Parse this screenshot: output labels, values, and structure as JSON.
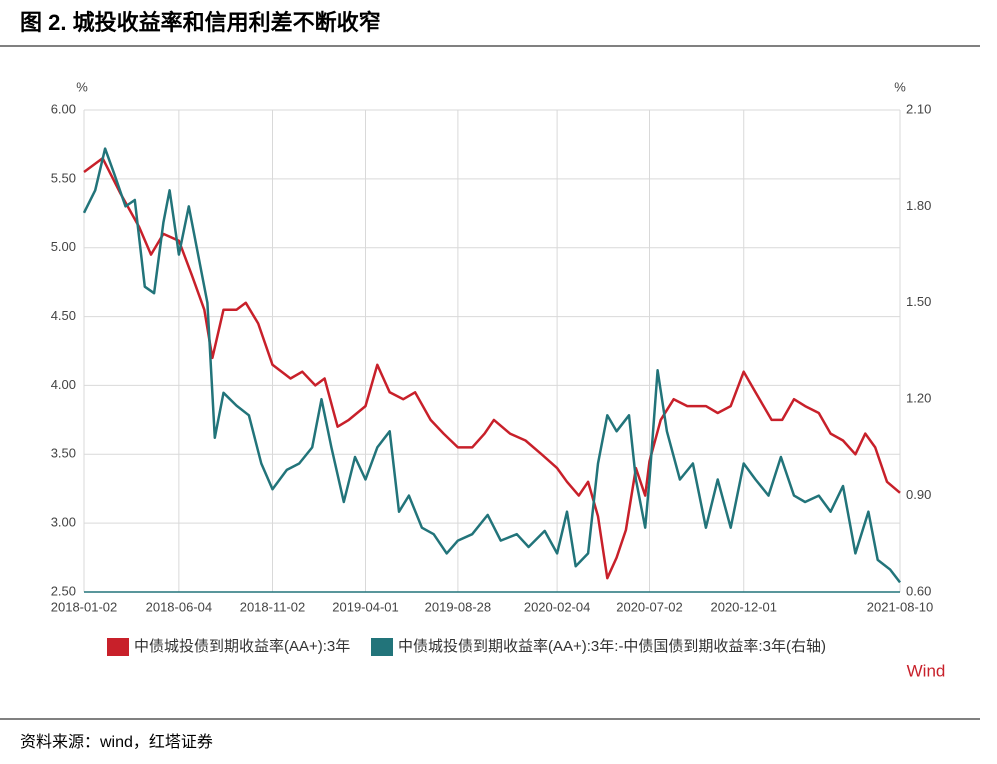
{
  "chart_data": {
    "type": "line",
    "title": "图 2. 城投收益率和信用利差不断收窄",
    "y_label": "%",
    "y2_label": "%",
    "annotation": "Wind",
    "source": "资料来源：wind，红塔证券",
    "grid": true,
    "xlim": [
      "2018-01-02",
      "2021-08-10"
    ],
    "xticks": [
      "2018-01-02",
      "2018-06-04",
      "2018-11-02",
      "2019-04-01",
      "2019-08-28",
      "2020-02-04",
      "2020-07-02",
      "2020-12-01",
      "2021-08-10"
    ],
    "ylim": [
      2.5,
      6.0
    ],
    "yticks": [
      {
        "value": 2.5,
        "label": "2.50"
      },
      {
        "value": 3.0,
        "label": "3.00"
      },
      {
        "value": 3.5,
        "label": "3.50"
      },
      {
        "value": 4.0,
        "label": "4.00"
      },
      {
        "value": 4.5,
        "label": "4.50"
      },
      {
        "value": 5.0,
        "label": "5.00"
      },
      {
        "value": 5.5,
        "label": "5.50"
      },
      {
        "value": 6.0,
        "label": "6.00"
      }
    ],
    "y2lim": [
      0.6,
      2.1
    ],
    "y2ticks": [
      {
        "value": 0.6,
        "label": "0.60"
      },
      {
        "value": 0.9,
        "label": "0.90"
      },
      {
        "value": 1.2,
        "label": "1.20"
      },
      {
        "value": 1.5,
        "label": "1.50"
      },
      {
        "value": 1.8,
        "label": "1.80"
      },
      {
        "value": 2.1,
        "label": "2.10"
      }
    ],
    "series": [
      {
        "name": "中债城投债到期收益率(AA+):3年",
        "color": "#c8202a",
        "x": [
          "2018-01-02",
          "2018-02-01",
          "2018-03-01",
          "2018-04-01",
          "2018-04-20",
          "2018-05-10",
          "2018-06-04",
          "2018-06-25",
          "2018-07-15",
          "2018-07-28",
          "2018-08-15",
          "2018-09-05",
          "2018-09-20",
          "2018-10-10",
          "2018-11-02",
          "2018-12-01",
          "2018-12-20",
          "2019-01-10",
          "2019-01-25",
          "2019-02-15",
          "2019-03-05",
          "2019-04-01",
          "2019-04-20",
          "2019-05-10",
          "2019-06-01",
          "2019-06-20",
          "2019-07-15",
          "2019-08-05",
          "2019-08-28",
          "2019-09-20",
          "2019-10-10",
          "2019-10-25",
          "2019-11-20",
          "2019-12-15",
          "2020-01-10",
          "2020-02-04",
          "2020-02-20",
          "2020-03-10",
          "2020-03-25",
          "2020-04-10",
          "2020-04-25",
          "2020-05-10",
          "2020-05-25",
          "2020-06-10",
          "2020-06-25",
          "2020-07-02",
          "2020-07-20",
          "2020-08-10",
          "2020-09-01",
          "2020-10-01",
          "2020-10-20",
          "2020-11-10",
          "2020-12-01",
          "2020-12-20",
          "2021-01-15",
          "2021-02-01",
          "2021-02-20",
          "2021-03-10",
          "2021-04-01",
          "2021-04-20",
          "2021-05-10",
          "2021-05-30",
          "2021-06-15",
          "2021-07-01",
          "2021-07-20",
          "2021-08-10"
        ],
        "values": [
          5.55,
          5.65,
          5.4,
          5.15,
          4.95,
          5.1,
          5.05,
          4.8,
          4.55,
          4.2,
          4.55,
          4.55,
          4.6,
          4.45,
          4.15,
          4.05,
          4.1,
          4.0,
          4.05,
          3.7,
          3.75,
          3.85,
          4.15,
          3.95,
          3.9,
          3.95,
          3.75,
          3.65,
          3.55,
          3.55,
          3.65,
          3.75,
          3.65,
          3.6,
          3.5,
          3.4,
          3.3,
          3.2,
          3.3,
          3.05,
          2.6,
          2.75,
          2.95,
          3.4,
          3.2,
          3.45,
          3.75,
          3.9,
          3.85,
          3.85,
          3.8,
          3.85,
          4.1,
          3.95,
          3.75,
          3.75,
          3.9,
          3.85,
          3.8,
          3.65,
          3.6,
          3.5,
          3.65,
          3.55,
          3.3,
          3.22
        ]
      },
      {
        "name": "中债城投债到期收益率(AA+):3年:-中债国债到期收益率:3年(右轴)",
        "color": "#22747a",
        "axis": "y2",
        "x": [
          "2018-01-02",
          "2018-01-20",
          "2018-02-05",
          "2018-02-20",
          "2018-03-10",
          "2018-03-25",
          "2018-04-10",
          "2018-04-25",
          "2018-05-10",
          "2018-05-20",
          "2018-06-04",
          "2018-06-20",
          "2018-07-05",
          "2018-07-20",
          "2018-08-01",
          "2018-08-15",
          "2018-09-05",
          "2018-09-25",
          "2018-10-15",
          "2018-11-02",
          "2018-11-25",
          "2018-12-15",
          "2019-01-05",
          "2019-01-20",
          "2019-02-05",
          "2019-02-25",
          "2019-03-15",
          "2019-04-01",
          "2019-04-20",
          "2019-05-10",
          "2019-05-25",
          "2019-06-10",
          "2019-07-01",
          "2019-07-20",
          "2019-08-10",
          "2019-08-28",
          "2019-09-20",
          "2019-10-15",
          "2019-11-05",
          "2019-12-01",
          "2019-12-20",
          "2020-01-15",
          "2020-02-04",
          "2020-02-20",
          "2020-03-05",
          "2020-03-25",
          "2020-04-10",
          "2020-04-25",
          "2020-05-10",
          "2020-05-30",
          "2020-06-10",
          "2020-06-25",
          "2020-07-02",
          "2020-07-15",
          "2020-07-30",
          "2020-08-20",
          "2020-09-10",
          "2020-10-01",
          "2020-10-20",
          "2020-11-10",
          "2020-12-01",
          "2020-12-20",
          "2021-01-10",
          "2021-01-30",
          "2021-02-20",
          "2021-03-10",
          "2021-04-01",
          "2021-04-20",
          "2021-05-10",
          "2021-05-30",
          "2021-06-20",
          "2021-07-05",
          "2021-07-25",
          "2021-08-10"
        ],
        "values": [
          1.78,
          1.85,
          1.98,
          1.9,
          1.8,
          1.82,
          1.55,
          1.53,
          1.75,
          1.85,
          1.65,
          1.8,
          1.65,
          1.5,
          1.08,
          1.22,
          1.18,
          1.15,
          1.0,
          0.92,
          0.98,
          1.0,
          1.05,
          1.2,
          1.05,
          0.88,
          1.02,
          0.95,
          1.05,
          1.1,
          0.85,
          0.9,
          0.8,
          0.78,
          0.72,
          0.76,
          0.78,
          0.84,
          0.76,
          0.78,
          0.74,
          0.79,
          0.72,
          0.85,
          0.68,
          0.72,
          1.0,
          1.15,
          1.1,
          1.15,
          0.95,
          0.8,
          0.95,
          1.29,
          1.1,
          0.95,
          1.0,
          0.8,
          0.95,
          0.8,
          1.0,
          0.95,
          0.9,
          1.02,
          0.9,
          0.88,
          0.9,
          0.85,
          0.93,
          0.72,
          0.85,
          0.7,
          0.67,
          0.63
        ]
      }
    ]
  }
}
